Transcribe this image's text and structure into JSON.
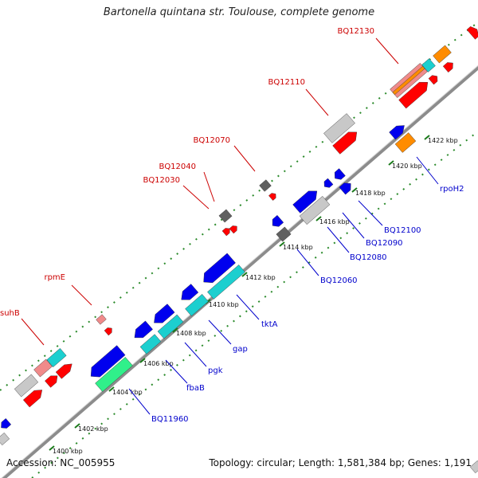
{
  "title": "Bartonella quintana str. Toulouse, complete genome",
  "footer": {
    "accession": "Accession: NC_005955",
    "summary": "Topology: circular; Length: 1,581,384 bp; Genes: 1,191"
  },
  "colors": {
    "backbone": "#8c8c8c",
    "track_dots": "#2a8a2a",
    "label_top": "#cc0000",
    "label_bottom": "#0000cc",
    "gene_red": "#ff0000",
    "gene_blue": "#0000ee",
    "gene_cyan": "#1ccfcf",
    "gene_gray": "#c8c8c8",
    "gene_darkgray": "#606060",
    "gene_orange": "#ff8c00",
    "gene_pink": "#f08a8a",
    "gene_green": "#30f08a"
  },
  "ticks": [
    {
      "label": "1400 kbp"
    },
    {
      "label": "1402 kbp"
    },
    {
      "label": "1404 kbp"
    },
    {
      "label": "1406 kbp"
    },
    {
      "label": "1408 kbp"
    },
    {
      "label": "1410 kbp"
    },
    {
      "label": "1412 kbp"
    },
    {
      "label": "1414 kbp"
    },
    {
      "label": "1416 kbp"
    },
    {
      "label": "1418 kbp"
    },
    {
      "label": "1420 kbp"
    },
    {
      "label": "1422 kbp"
    }
  ],
  "gene_labels_top": [
    {
      "text": "suhB"
    },
    {
      "text": "rpmE"
    },
    {
      "text": "BQ12030"
    },
    {
      "text": "BQ12040"
    },
    {
      "text": "BQ12070"
    },
    {
      "text": "BQ12110"
    },
    {
      "text": "BQ12130"
    }
  ],
  "gene_labels_bottom": [
    {
      "text": "BQ11960"
    },
    {
      "text": "fbaB"
    },
    {
      "text": "pgk"
    },
    {
      "text": "gap"
    },
    {
      "text": "tktA"
    },
    {
      "text": "BQ12060"
    },
    {
      "text": "BQ12080"
    },
    {
      "text": "BQ12090"
    },
    {
      "text": "BQ12100"
    },
    {
      "text": "rpoH2"
    }
  ]
}
